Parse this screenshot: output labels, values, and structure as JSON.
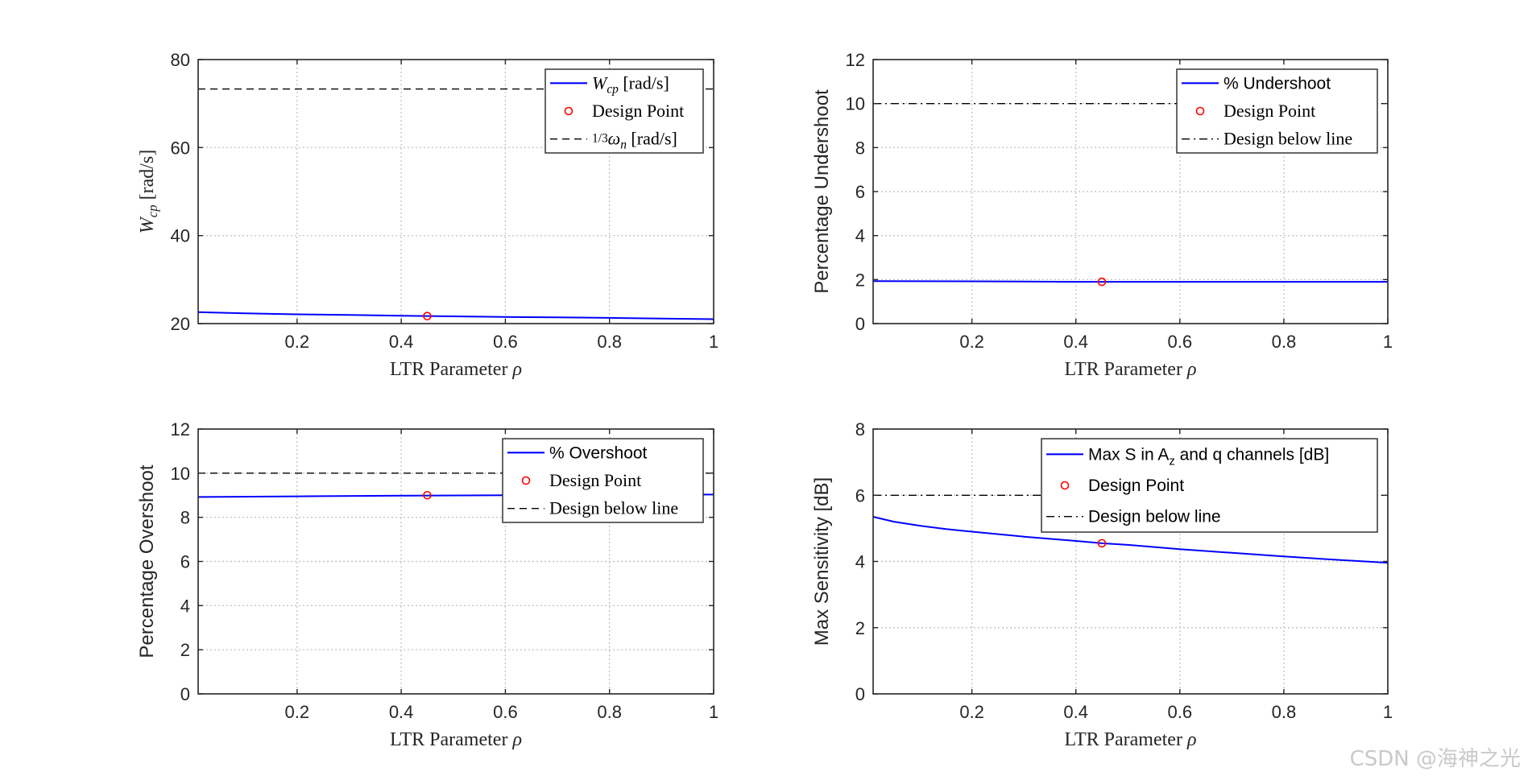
{
  "watermark": "CSDN @海神之光",
  "chart_data": [
    {
      "type": "line",
      "xlabel": "LTR Parameter ρ",
      "ylabel": "W_cp [rad/s]",
      "xlim": [
        0.01,
        1
      ],
      "ylim": [
        20,
        80
      ],
      "xticks": [
        0.2,
        0.4,
        0.6,
        0.8,
        1
      ],
      "yticks": [
        20,
        40,
        60,
        80
      ],
      "grid": true,
      "series": [
        {
          "name": "W_cp [rad/s]",
          "style": "solid",
          "color": "#0000ff",
          "x": [
            0.01,
            0.1,
            0.2,
            0.3,
            0.4,
            0.5,
            0.6,
            0.7,
            0.8,
            0.9,
            1.0
          ],
          "y": [
            22.6,
            22.35,
            22.1,
            21.95,
            21.8,
            21.65,
            21.5,
            21.4,
            21.3,
            21.15,
            21.0
          ]
        },
        {
          "name": "Design Point",
          "style": "marker",
          "color": "#ff0000",
          "x": [
            0.45
          ],
          "y": [
            21.7
          ]
        },
        {
          "name": "1/3 ω_n [rad/s]",
          "style": "dashed",
          "color": "#000000",
          "x": [
            0.01,
            1.0
          ],
          "y": [
            73.3,
            73.3
          ]
        }
      ],
      "legend": {
        "position": "top-right",
        "entries": [
          {
            "label": "W_cp [rad/s]",
            "style": "solid",
            "font": "serif"
          },
          {
            "label": "Design Point",
            "style": "marker",
            "font": "serif"
          },
          {
            "label": "1/3 ω_n [rad/s]",
            "style": "dashed",
            "font": "serif"
          }
        ]
      }
    },
    {
      "type": "line",
      "xlabel": "LTR Parameter ρ",
      "ylabel": "Percentage Undershoot",
      "xlim": [
        0.01,
        1
      ],
      "ylim": [
        0,
        12
      ],
      "xticks": [
        0.2,
        0.4,
        0.6,
        0.8,
        1
      ],
      "yticks": [
        0,
        2,
        4,
        6,
        8,
        10,
        12
      ],
      "grid": true,
      "series": [
        {
          "name": "% Undershoot",
          "style": "solid",
          "color": "#0000ff",
          "x": [
            0.01,
            0.2,
            0.4,
            0.6,
            0.8,
            1.0
          ],
          "y": [
            1.93,
            1.92,
            1.9,
            1.9,
            1.9,
            1.9
          ]
        },
        {
          "name": "Design Point",
          "style": "marker",
          "color": "#ff0000",
          "x": [
            0.45
          ],
          "y": [
            1.9
          ]
        },
        {
          "name": "Design below line",
          "style": "dashdot",
          "color": "#000000",
          "x": [
            0.01,
            1.0
          ],
          "y": [
            10,
            10
          ]
        }
      ],
      "legend": {
        "position": "top-right",
        "entries": [
          {
            "label": "% Undershoot",
            "style": "solid",
            "font": "sans"
          },
          {
            "label": "Design Point",
            "style": "marker",
            "font": "serif"
          },
          {
            "label": "Design below line",
            "style": "dashdot",
            "font": "serif"
          }
        ]
      }
    },
    {
      "type": "line",
      "xlabel": "LTR Parameter ρ",
      "ylabel": "Percentage Overshoot",
      "xlim": [
        0.01,
        1
      ],
      "ylim": [
        0,
        12
      ],
      "xticks": [
        0.2,
        0.4,
        0.6,
        0.8,
        1
      ],
      "yticks": [
        0,
        2,
        4,
        6,
        8,
        10,
        12
      ],
      "grid": true,
      "series": [
        {
          "name": "% Overshoot",
          "style": "solid",
          "color": "#0000ff",
          "x": [
            0.01,
            0.2,
            0.4,
            0.6,
            0.8,
            1.0
          ],
          "y": [
            8.92,
            8.95,
            8.98,
            9.0,
            9.02,
            9.03
          ]
        },
        {
          "name": "Design Point",
          "style": "marker",
          "color": "#ff0000",
          "x": [
            0.45
          ],
          "y": [
            9.0
          ]
        },
        {
          "name": "Design below line",
          "style": "dashed",
          "color": "#000000",
          "x": [
            0.01,
            1.0
          ],
          "y": [
            10,
            10
          ]
        }
      ],
      "legend": {
        "position": "top-right",
        "entries": [
          {
            "label": "% Overshoot",
            "style": "solid",
            "font": "sans"
          },
          {
            "label": "Design Point",
            "style": "marker",
            "font": "serif"
          },
          {
            "label": "Design below line",
            "style": "dashed",
            "font": "serif"
          }
        ]
      }
    },
    {
      "type": "line",
      "xlabel": "LTR Parameter ρ",
      "ylabel": "Max Sensitivity [dB]",
      "xlim": [
        0.01,
        1
      ],
      "ylim": [
        0,
        8
      ],
      "xticks": [
        0.2,
        0.4,
        0.6,
        0.8,
        1
      ],
      "yticks": [
        0,
        2,
        4,
        6,
        8
      ],
      "grid": true,
      "series": [
        {
          "name": "Max S in A_z and q channels [dB]",
          "style": "solid",
          "color": "#0000ff",
          "x": [
            0.01,
            0.05,
            0.1,
            0.15,
            0.2,
            0.3,
            0.4,
            0.45,
            0.5,
            0.6,
            0.7,
            0.8,
            0.9,
            1.0
          ],
          "y": [
            5.35,
            5.2,
            5.08,
            4.98,
            4.9,
            4.75,
            4.62,
            4.55,
            4.5,
            4.37,
            4.26,
            4.15,
            4.05,
            3.96
          ]
        },
        {
          "name": "Design Point",
          "style": "marker",
          "color": "#ff0000",
          "x": [
            0.45
          ],
          "y": [
            4.55
          ]
        },
        {
          "name": "Design below line",
          "style": "dashdot",
          "color": "#000000",
          "x": [
            0.01,
            1.0
          ],
          "y": [
            6,
            6
          ]
        }
      ],
      "legend": {
        "position": "top-right",
        "entries": [
          {
            "label": "Max S in A_z and q channels [dB]",
            "style": "solid",
            "font": "sans"
          },
          {
            "label": "Design Point",
            "style": "marker",
            "font": "sans"
          },
          {
            "label": "Design below line",
            "style": "dashdot",
            "font": "sans"
          }
        ]
      }
    }
  ]
}
